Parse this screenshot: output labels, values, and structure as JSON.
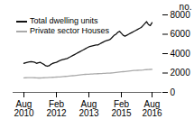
{
  "chart_data": {
    "type": "line",
    "categories": [
      "Aug\n2010",
      null,
      null,
      null,
      null,
      null,
      null,
      null,
      null,
      null,
      null,
      null,
      null,
      null,
      null,
      null,
      null,
      null,
      "Feb\n2012",
      null,
      null,
      null,
      null,
      null,
      null,
      null,
      null,
      null,
      null,
      null,
      null,
      null,
      null,
      null,
      null,
      null,
      "Aug\n2013",
      null,
      null,
      null,
      null,
      null,
      null,
      null,
      null,
      null,
      null,
      null,
      null,
      null,
      null,
      null,
      null,
      null,
      "Feb\n2015",
      null,
      null,
      null,
      null,
      null,
      null,
      null,
      null,
      null,
      null,
      null,
      null,
      null,
      null,
      null,
      null,
      "Aug\n2016"
    ],
    "series": [
      {
        "name": "Total dwelling units",
        "color": "#111111",
        "values": [
          3000,
          3050,
          3100,
          3150,
          3180,
          3150,
          3100,
          3000,
          3050,
          3100,
          3000,
          2900,
          2750,
          2700,
          2750,
          2900,
          3000,
          3050,
          3100,
          3200,
          3300,
          3350,
          3400,
          3450,
          3500,
          3600,
          3700,
          3800,
          3900,
          4000,
          4100,
          4200,
          4300,
          4400,
          4500,
          4600,
          4700,
          4750,
          4800,
          4850,
          4900,
          4900,
          5000,
          5100,
          5200,
          5300,
          5350,
          5400,
          5500,
          5700,
          5900,
          6000,
          6200,
          6300,
          6100,
          5900,
          5800,
          5900,
          6000,
          6100,
          6200,
          6300,
          6400,
          6500,
          6600,
          6700,
          6900,
          7100,
          7300,
          7000,
          6900,
          7200
        ]
      },
      {
        "name": "Private sector Houses",
        "color": "#aaaaaa",
        "values": [
          1500,
          1510,
          1520,
          1530,
          1530,
          1520,
          1510,
          1500,
          1490,
          1490,
          1500,
          1510,
          1520,
          1530,
          1540,
          1550,
          1560,
          1570,
          1580,
          1590,
          1600,
          1620,
          1640,
          1650,
          1660,
          1680,
          1700,
          1720,
          1740,
          1760,
          1780,
          1800,
          1820,
          1840,
          1860,
          1870,
          1880,
          1890,
          1900,
          1910,
          1920,
          1930,
          1940,
          1950,
          1960,
          1970,
          1980,
          1990,
          2000,
          2020,
          2040,
          2060,
          2080,
          2100,
          2120,
          2140,
          2160,
          2180,
          2200,
          2220,
          2240,
          2260,
          2270,
          2280,
          2290,
          2300,
          2310,
          2330,
          2350,
          2360,
          2370,
          2380
        ]
      }
    ],
    "ylabel": "no.",
    "ylim": [
      0,
      8000
    ],
    "yticks": [
      0,
      2000,
      4000,
      6000,
      8000
    ],
    "legend": "upper left"
  }
}
